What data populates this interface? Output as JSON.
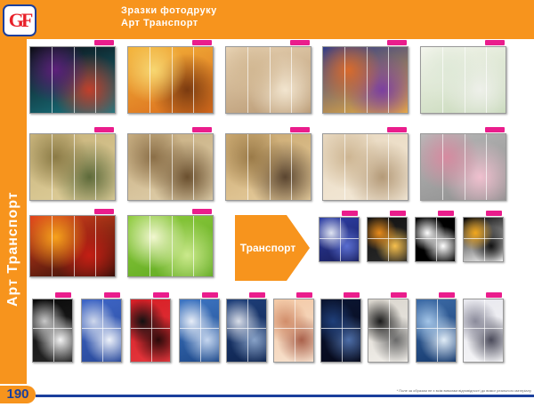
{
  "logo": {
    "text": "GF"
  },
  "header": {
    "line1": "Зразки фотодруку",
    "line2": "Арт   Транспорт"
  },
  "side_label": "Арт   Транспорт",
  "page_number": "190",
  "arrow_label": "Транспорт",
  "footnote": "* Поле за образом не є всім вимогам відповідності до вимог реального матеріалу",
  "tiles": [
    {
      "id": "smoke",
      "colors": [
        "#0b0b12",
        "#5d1f7a",
        "#1a7c87",
        "#c23f2b"
      ]
    },
    {
      "id": "autumn-leaves",
      "colors": [
        "#f4b43a",
        "#f7d772",
        "#d96a1c",
        "#7a3a10"
      ]
    },
    {
      "id": "sand-shells",
      "colors": [
        "#e8d3b4",
        "#d2b893",
        "#b69670",
        "#f2e5cf"
      ]
    },
    {
      "id": "london-night",
      "colors": [
        "#2c3a8a",
        "#d96a2c",
        "#f2b33d",
        "#7b3fa0"
      ]
    },
    {
      "id": "white-birds",
      "colors": [
        "#f5f6ee",
        "#dfe9d8",
        "#c5d7b7",
        "#eef0ea"
      ]
    },
    {
      "id": "tree-path",
      "colors": [
        "#c7b27a",
        "#8a7a45",
        "#e0d09c",
        "#5d6a3a"
      ]
    },
    {
      "id": "sepia-bridge",
      "colors": [
        "#c5ab7e",
        "#8a6e47",
        "#e2d2ae",
        "#6a4f2e"
      ]
    },
    {
      "id": "notre-dame",
      "colors": [
        "#c8a66e",
        "#9a7a48",
        "#e8cfa0",
        "#5a4530"
      ]
    },
    {
      "id": "columns",
      "colors": [
        "#e8d8bf",
        "#cdb592",
        "#f4ead9",
        "#b49a78"
      ]
    },
    {
      "id": "pink-blossom",
      "colors": [
        "#b8b8b8",
        "#d78aa0",
        "#8e8e8e",
        "#f0c0cf"
      ]
    },
    {
      "id": "sunset",
      "colors": [
        "#e3421d",
        "#f7a21c",
        "#2a0e08",
        "#c41e14"
      ]
    },
    {
      "id": "spring-meadow",
      "colors": [
        "#8fcc3e",
        "#f2f7d0",
        "#5ea820",
        "#cbe98c"
      ]
    },
    {
      "id": "blue-car",
      "colors": [
        "#2d3fa8",
        "#dfe4f2",
        "#1a1f5c",
        "#5a6ed0"
      ]
    },
    {
      "id": "orange-car",
      "colors": [
        "#111",
        "#e88b1a",
        "#2a2a2a",
        "#f7c04d"
      ]
    },
    {
      "id": "bw-car",
      "colors": [
        "#000",
        "#fff",
        "#000",
        "#fff"
      ]
    },
    {
      "id": "yellow-car",
      "colors": [
        "#000",
        "#f2a71c",
        "#fff",
        "#111"
      ]
    },
    {
      "id": "black-car",
      "colors": [
        "#0a0a0a",
        "#c8c8c8",
        "#262626",
        "#f4f4f4"
      ]
    },
    {
      "id": "silver-car",
      "colors": [
        "#3e66c7",
        "#cfd8ec",
        "#2a4a9a",
        "#eef2fa"
      ]
    },
    {
      "id": "red-car",
      "colors": [
        "#d71f26",
        "#111",
        "#e4373d",
        "#2a0a0a"
      ]
    },
    {
      "id": "ship-blue",
      "colors": [
        "#3e76c4",
        "#e8eef8",
        "#1f4a8a",
        "#c5d6ef"
      ]
    },
    {
      "id": "ship-dark",
      "colors": [
        "#1e3f7a",
        "#d8dde8",
        "#0f2550",
        "#88a2c8"
      ]
    },
    {
      "id": "ship-sunset",
      "colors": [
        "#f3c9a6",
        "#d18d6a",
        "#f7e2cf",
        "#a9604a"
      ]
    },
    {
      "id": "night-sea",
      "colors": [
        "#0b1633",
        "#1f3f7a",
        "#06091a",
        "#4d6ea8"
      ]
    },
    {
      "id": "vintage-car",
      "colors": [
        "#d9d5cd",
        "#1a1a1a",
        "#f2efea",
        "#6a6a6a"
      ]
    },
    {
      "id": "ghost-ship",
      "colors": [
        "#3d6ca8",
        "#a3c5e8",
        "#163a6e",
        "#e0ecf7"
      ]
    },
    {
      "id": "motorbike",
      "colors": [
        "#e8e8ee",
        "#8a8a9a",
        "#f5f5f7",
        "#4a4a5a"
      ]
    }
  ]
}
